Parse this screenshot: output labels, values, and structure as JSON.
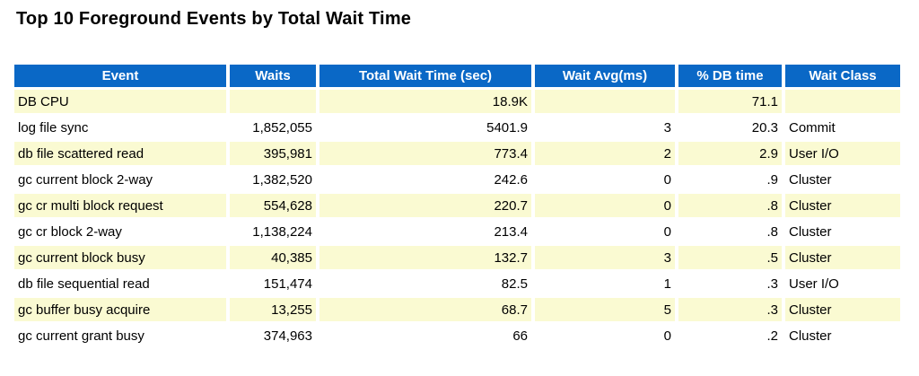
{
  "page": {
    "title": "Top 10 Foreground Events by Total Wait Time"
  },
  "table": {
    "columns": [
      "Event",
      "Waits",
      "Total Wait Time (sec)",
      "Wait Avg(ms)",
      "% DB time",
      "Wait Class"
    ],
    "rows": [
      {
        "event": "DB CPU",
        "waits": "",
        "total_wait_time_sec": "18.9K",
        "wait_avg_ms": "",
        "pct_db_time": "71.1",
        "wait_class": ""
      },
      {
        "event": "log file sync",
        "waits": "1,852,055",
        "total_wait_time_sec": "5401.9",
        "wait_avg_ms": "3",
        "pct_db_time": "20.3",
        "wait_class": "Commit"
      },
      {
        "event": "db file scattered read",
        "waits": "395,981",
        "total_wait_time_sec": "773.4",
        "wait_avg_ms": "2",
        "pct_db_time": "2.9",
        "wait_class": "User I/O"
      },
      {
        "event": "gc current block 2-way",
        "waits": "1,382,520",
        "total_wait_time_sec": "242.6",
        "wait_avg_ms": "0",
        "pct_db_time": ".9",
        "wait_class": "Cluster"
      },
      {
        "event": "gc cr multi block request",
        "waits": "554,628",
        "total_wait_time_sec": "220.7",
        "wait_avg_ms": "0",
        "pct_db_time": ".8",
        "wait_class": "Cluster"
      },
      {
        "event": "gc cr block 2-way",
        "waits": "1,138,224",
        "total_wait_time_sec": "213.4",
        "wait_avg_ms": "0",
        "pct_db_time": ".8",
        "wait_class": "Cluster"
      },
      {
        "event": "gc current block busy",
        "waits": "40,385",
        "total_wait_time_sec": "132.7",
        "wait_avg_ms": "3",
        "pct_db_time": ".5",
        "wait_class": "Cluster"
      },
      {
        "event": "db file sequential read",
        "waits": "151,474",
        "total_wait_time_sec": "82.5",
        "wait_avg_ms": "1",
        "pct_db_time": ".3",
        "wait_class": "User I/O"
      },
      {
        "event": "gc buffer busy acquire",
        "waits": "13,255",
        "total_wait_time_sec": "68.7",
        "wait_avg_ms": "5",
        "pct_db_time": ".3",
        "wait_class": "Cluster"
      },
      {
        "event": "gc current grant busy",
        "waits": "374,963",
        "total_wait_time_sec": "66",
        "wait_avg_ms": "0",
        "pct_db_time": ".2",
        "wait_class": "Cluster"
      }
    ]
  },
  "colors": {
    "header_bg": "#0a68c6",
    "header_text": "#ffffff",
    "row_alt_bg": "#fafad2",
    "row_bg": "#ffffff",
    "text": "#000000"
  }
}
